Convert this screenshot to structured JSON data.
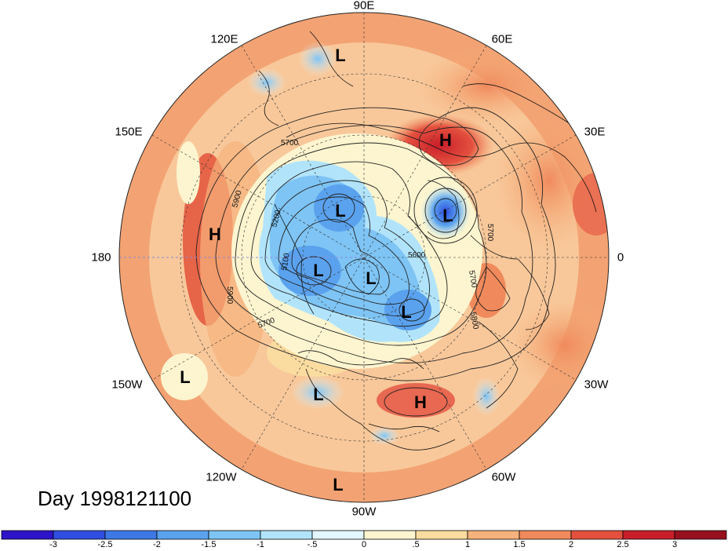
{
  "figure": {
    "day_label": "Day 1998121100",
    "longitude_labels": {
      "lon_90e": "90E",
      "lon_120e": "120E",
      "lon_60e": "60E",
      "lon_150e": "150E",
      "lon_30e": "30E",
      "lon_180": "180",
      "lon_0": "0",
      "lon_150w": "150W",
      "lon_30w": "30W",
      "lon_120w": "120W",
      "lon_60w": "60W",
      "lon_90w": "90W"
    },
    "contour_labels": [
      "5700",
      "5900",
      "5200",
      "5100",
      "5900",
      "5700",
      "5800",
      "5700",
      "5700",
      "5600"
    ],
    "pressure_systems": [
      {
        "kind": "L"
      },
      {
        "kind": "H"
      },
      {
        "kind": "L"
      },
      {
        "kind": "L"
      },
      {
        "kind": "H"
      },
      {
        "kind": "L"
      },
      {
        "kind": "L"
      },
      {
        "kind": "L"
      },
      {
        "kind": "L"
      },
      {
        "kind": "L"
      },
      {
        "kind": "H"
      },
      {
        "kind": "L"
      }
    ],
    "colorbar": {
      "ticks": [
        "-3",
        "-2.5",
        "-2",
        "-1.5",
        "-1",
        "-.5",
        "0",
        ".5",
        "1",
        "1.5",
        "2",
        "2.5",
        "3"
      ],
      "colors": [
        "#2d14c8",
        "#2f4fe0",
        "#3e78e6",
        "#5aa2ee",
        "#7ec4f4",
        "#b1e4fa",
        "#e2f6fd",
        "#fdf5cf",
        "#fbdca0",
        "#f6b27c",
        "#f08a5c",
        "#e4503e",
        "#c81e2a",
        "#96101e"
      ]
    }
  }
}
